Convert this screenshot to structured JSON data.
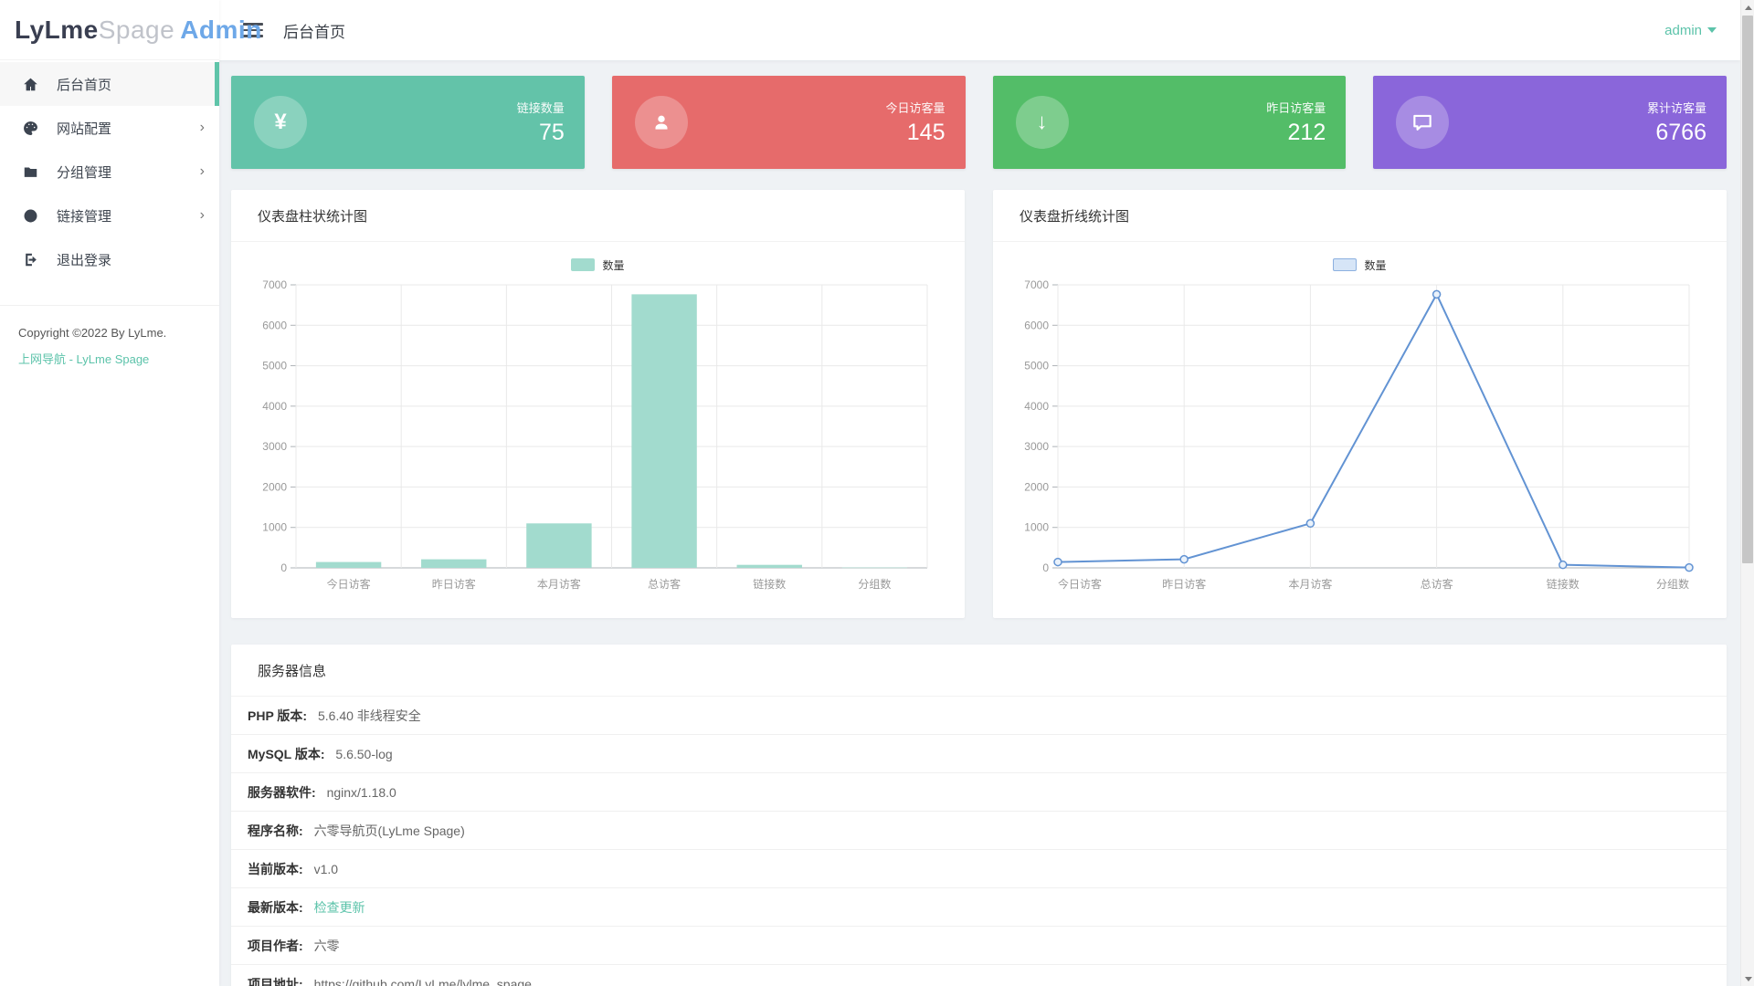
{
  "logo": {
    "part1": "LyLme",
    "part2": "Spage",
    "part3": "Admin"
  },
  "header": {
    "title": "后台首页",
    "user": "admin"
  },
  "sidebar": {
    "items": [
      {
        "name": "home",
        "icon": "home",
        "label": "后台首页",
        "active": true,
        "chevron": false
      },
      {
        "name": "site-config",
        "icon": "palette",
        "label": "网站配置",
        "active": false,
        "chevron": true
      },
      {
        "name": "group-manage",
        "icon": "folder",
        "label": "分组管理",
        "active": false,
        "chevron": true
      },
      {
        "name": "link-manage",
        "icon": "globe",
        "label": "链接管理",
        "active": false,
        "chevron": true
      },
      {
        "name": "logout",
        "icon": "logout",
        "label": "退出登录",
        "active": false,
        "chevron": false
      }
    ],
    "copyright": "Copyright ©2022 By LyLme.",
    "footer_link": "上网导航 - LyLme Spage"
  },
  "stat_cards": [
    {
      "name": "links-count",
      "icon": "yen",
      "label": "链接数量",
      "value": "75",
      "color": "#63c3a9"
    },
    {
      "name": "today-visitors",
      "icon": "person",
      "label": "今日访客量",
      "value": "145",
      "color": "#e66b6b"
    },
    {
      "name": "yesterday-visitors",
      "icon": "arrow-down",
      "label": "昨日访客量",
      "value": "212",
      "color": "#53bd68"
    },
    {
      "name": "total-visitors",
      "icon": "chat",
      "label": "累计访客量",
      "value": "6766",
      "color": "#8a66da"
    }
  ],
  "chart_data": [
    {
      "type": "bar",
      "title": "仪表盘柱状统计图",
      "legend": "数量",
      "categories": [
        "今日访客",
        "昨日访客",
        "本月访客",
        "总访客",
        "链接数",
        "分组数"
      ],
      "values": [
        145,
        212,
        1100,
        6766,
        75,
        8
      ],
      "ylim": [
        0,
        7000
      ],
      "ytick_step": 1000,
      "grid": true,
      "legend_position": "top",
      "bar_color": "#a2dbce"
    },
    {
      "type": "line",
      "title": "仪表盘折线统计图",
      "legend": "数量",
      "categories": [
        "今日访客",
        "昨日访客",
        "本月访客",
        "总访客",
        "链接数",
        "分组数"
      ],
      "values": [
        145,
        212,
        1100,
        6766,
        75,
        8
      ],
      "ylim": [
        0,
        7000
      ],
      "ytick_step": 1000,
      "grid": true,
      "legend_position": "top",
      "line_color": "#6293d3",
      "marker_fill": "#eaf2fb",
      "legend_fill": "#d6e5f7",
      "legend_border": "#8cb0e0"
    }
  ],
  "server_info": {
    "title": "服务器信息",
    "rows": [
      {
        "label": "PHP 版本:",
        "value": "5.6.40 非线程安全",
        "link": false
      },
      {
        "label": "MySQL 版本:",
        "value": "5.6.50-log",
        "link": false
      },
      {
        "label": "服务器软件:",
        "value": "nginx/1.18.0",
        "link": false
      },
      {
        "label": "程序名称:",
        "value": "六零导航页(LyLme Spage)",
        "link": false
      },
      {
        "label": "当前版本:",
        "value": "v1.0",
        "link": false
      },
      {
        "label": "最新版本:",
        "value": "检查更新",
        "link": true
      },
      {
        "label": "项目作者:",
        "value": "六零",
        "link": false
      },
      {
        "label": "项目地址:",
        "value": "https://github.com/LyLme/lylme_spage",
        "link": false
      }
    ]
  }
}
